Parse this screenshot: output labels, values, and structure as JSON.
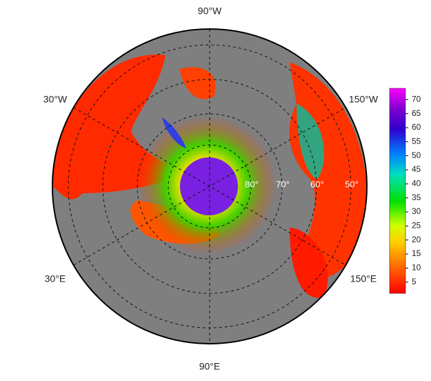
{
  "map": {
    "longitude_labels": [
      "90°W",
      "30°W",
      "150°W",
      "30°E",
      "150°E",
      "90°E"
    ],
    "latitude_labels": [
      "80°",
      "70°",
      "60°",
      "50°"
    ],
    "colorbar": {
      "range": [
        1,
        74
      ],
      "ticks": [
        5,
        10,
        15,
        20,
        25,
        30,
        35,
        40,
        45,
        50,
        55,
        60,
        65,
        70
      ]
    }
  }
}
